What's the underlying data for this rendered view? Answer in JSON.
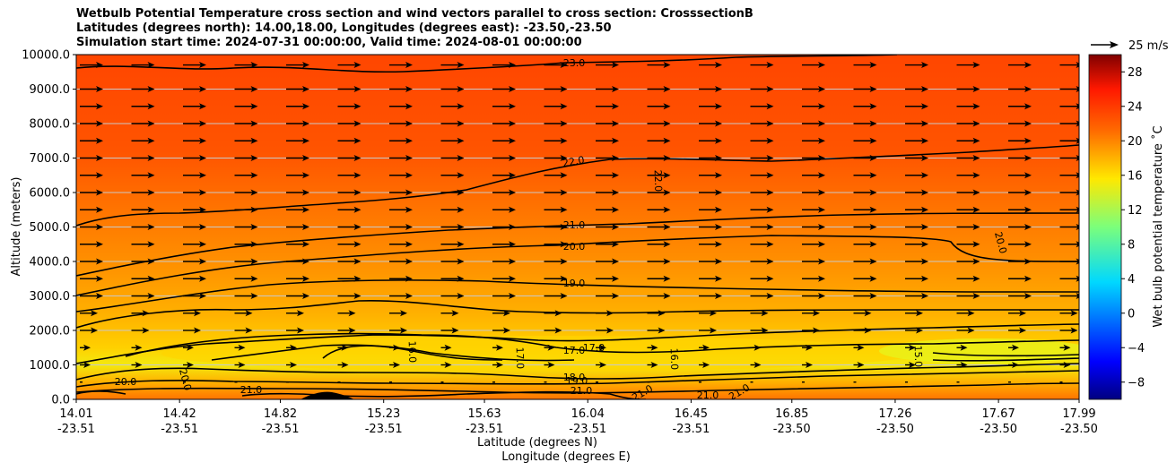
{
  "chart_data": {
    "type": "contour",
    "title_lines": [
      "Wetbulb Potential Temperature cross section and wind vectors parallel to cross section: CrosssectionB",
      "Latitudes (degrees north): 14.00,18.00, Longitudes (degrees east): -23.50,-23.50",
      "Simulation start time: 2024-07-31 00:00:00, Valid time: 2024-08-01 00:00:00"
    ],
    "xlabel_lat": "Latitude (degrees N)",
    "xlabel_lon": "Longitude (degrees E)",
    "ylabel": "Altitude (meters)",
    "ylim": [
      0,
      10000
    ],
    "xlim": [
      14.01,
      17.99
    ],
    "y_ticks": [
      "0.0",
      "1000.0",
      "2000.0",
      "3000.0",
      "4000.0",
      "5000.0",
      "6000.0",
      "7000.0",
      "8000.0",
      "9000.0",
      "10000.0"
    ],
    "x_ticks": [
      {
        "lat": "14.01",
        "lon": "-23.51"
      },
      {
        "lat": "14.42",
        "lon": "-23.51"
      },
      {
        "lat": "14.82",
        "lon": "-23.51"
      },
      {
        "lat": "15.23",
        "lon": "-23.51"
      },
      {
        "lat": "15.63",
        "lon": "-23.51"
      },
      {
        "lat": "16.04",
        "lon": "-23.51"
      },
      {
        "lat": "16.45",
        "lon": "-23.51"
      },
      {
        "lat": "16.85",
        "lon": "-23.50"
      },
      {
        "lat": "17.26",
        "lon": "-23.50"
      },
      {
        "lat": "17.67",
        "lon": "-23.50"
      },
      {
        "lat": "17.99",
        "lon": "-23.50"
      }
    ],
    "colorbar": {
      "label": "Wet bulb potential temperature ˚C",
      "min": -10,
      "max": 30,
      "ticks": [
        "28",
        "24",
        "20",
        "16",
        "12",
        "8",
        "4",
        "0",
        "−4",
        "−8"
      ],
      "colormap": "jet"
    },
    "quiver_key": "25 m/s",
    "contour_labels": [
      "23.0",
      "22.0",
      "22.0",
      "21.0",
      "20.0",
      "20.0",
      "19.0",
      "17.0",
      "17.0",
      "17.0",
      "16.0",
      "15.0",
      "16.0",
      "18.0",
      "19.0",
      "20.0",
      "20.0",
      "21.0",
      "21.0",
      "21.0",
      "21.0",
      "21.0"
    ],
    "grid": "horizontal"
  }
}
